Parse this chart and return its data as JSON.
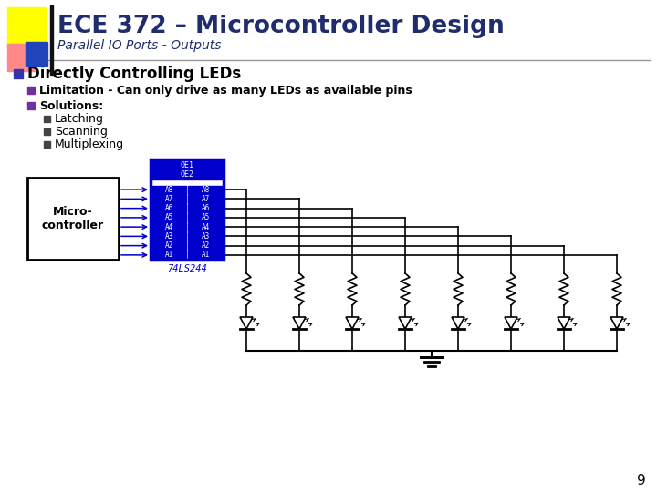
{
  "title": "ECE 372 – Microcontroller Design",
  "subtitle": "Parallel IO Ports - Outputs",
  "bg_color": "#ffffff",
  "title_color": "#1f2d6e",
  "subtitle_color": "#1f2d6e",
  "bullet1": "Directly Controlling LEDs",
  "sub_bullet1": "Limitation - Can only drive as many LEDs as available pins",
  "sub_bullet2": "Solutions:",
  "sub_sub_bullets": [
    "Latching",
    "Scanning",
    "Multiplexing"
  ],
  "text_color": "#000000",
  "chip_label": "74LS244",
  "chip_color": "#0000cc",
  "micro_label": "Micro-\ncontroller",
  "pin_labels_in": [
    "A8",
    "A7",
    "A6",
    "A5",
    "A4",
    "A3",
    "A2",
    "A1"
  ],
  "pin_labels_out": [
    "A8",
    "A7",
    "A6",
    "A5",
    "A4",
    "A3",
    "A2",
    "A1"
  ],
  "chip_top_labels": [
    "OE1",
    "OE2"
  ],
  "page_number": "9",
  "header_yellow": "#ffff00",
  "header_red": "#ff8888",
  "header_blue": "#2244bb",
  "bullet_blue": "#3333aa",
  "bullet_purple": "#7030a0",
  "bullet_dark": "#444444"
}
